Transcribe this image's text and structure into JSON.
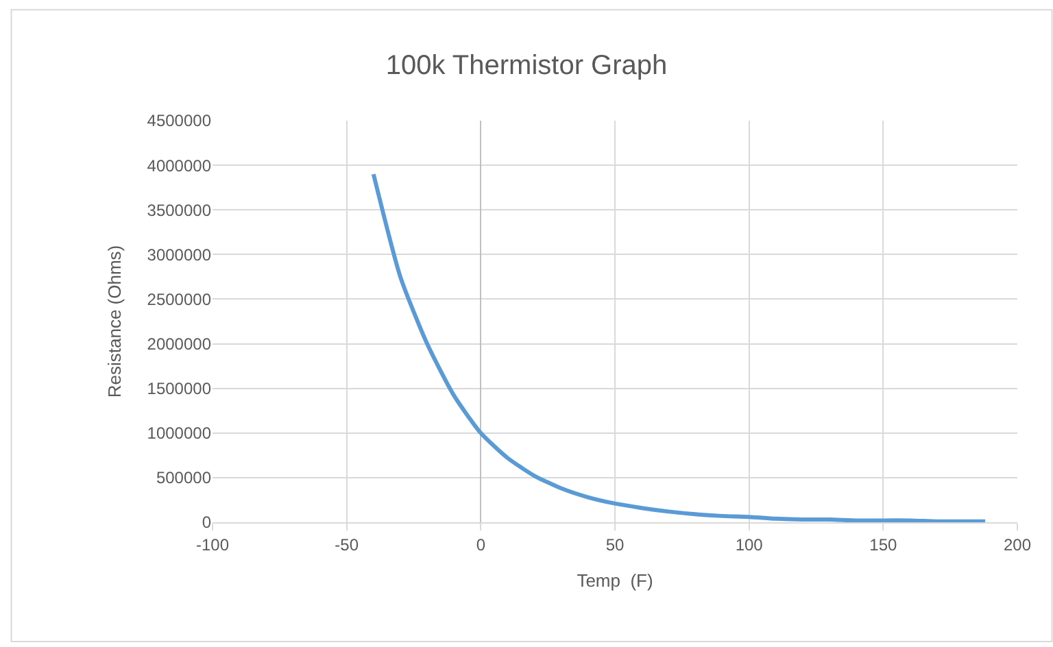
{
  "chart_data": {
    "type": "line",
    "title": "100k Thermistor Graph",
    "xlabel": "Temp  (F)",
    "ylabel": "Resistance (Ohms)",
    "x": [
      -40,
      -30,
      -20,
      -10,
      0,
      10,
      20,
      30,
      40,
      50,
      60,
      70,
      80,
      90,
      100,
      110,
      120,
      130,
      140,
      150,
      160,
      170,
      180,
      188
    ],
    "series": [
      {
        "color": "#5b9bd5",
        "values": [
          3900000,
          2750000,
          2000000,
          1420000,
          1000000,
          720000,
          520000,
          380000,
          280000,
          210000,
          160000,
          120000,
          90000,
          70000,
          60000,
          40000,
          30000,
          30000,
          20000,
          20000,
          20000,
          10000,
          10000,
          10000
        ]
      }
    ],
    "xlim": [
      -100,
      200
    ],
    "xticks": [
      -100,
      -50,
      0,
      50,
      100,
      150,
      200
    ],
    "ylim": [
      0,
      4500000
    ],
    "yticks": [
      0,
      500000,
      1000000,
      1500000,
      2000000,
      2500000,
      3000000,
      3500000,
      4000000,
      4500000
    ],
    "grid": true,
    "marker": "none",
    "line_style": "solid"
  }
}
